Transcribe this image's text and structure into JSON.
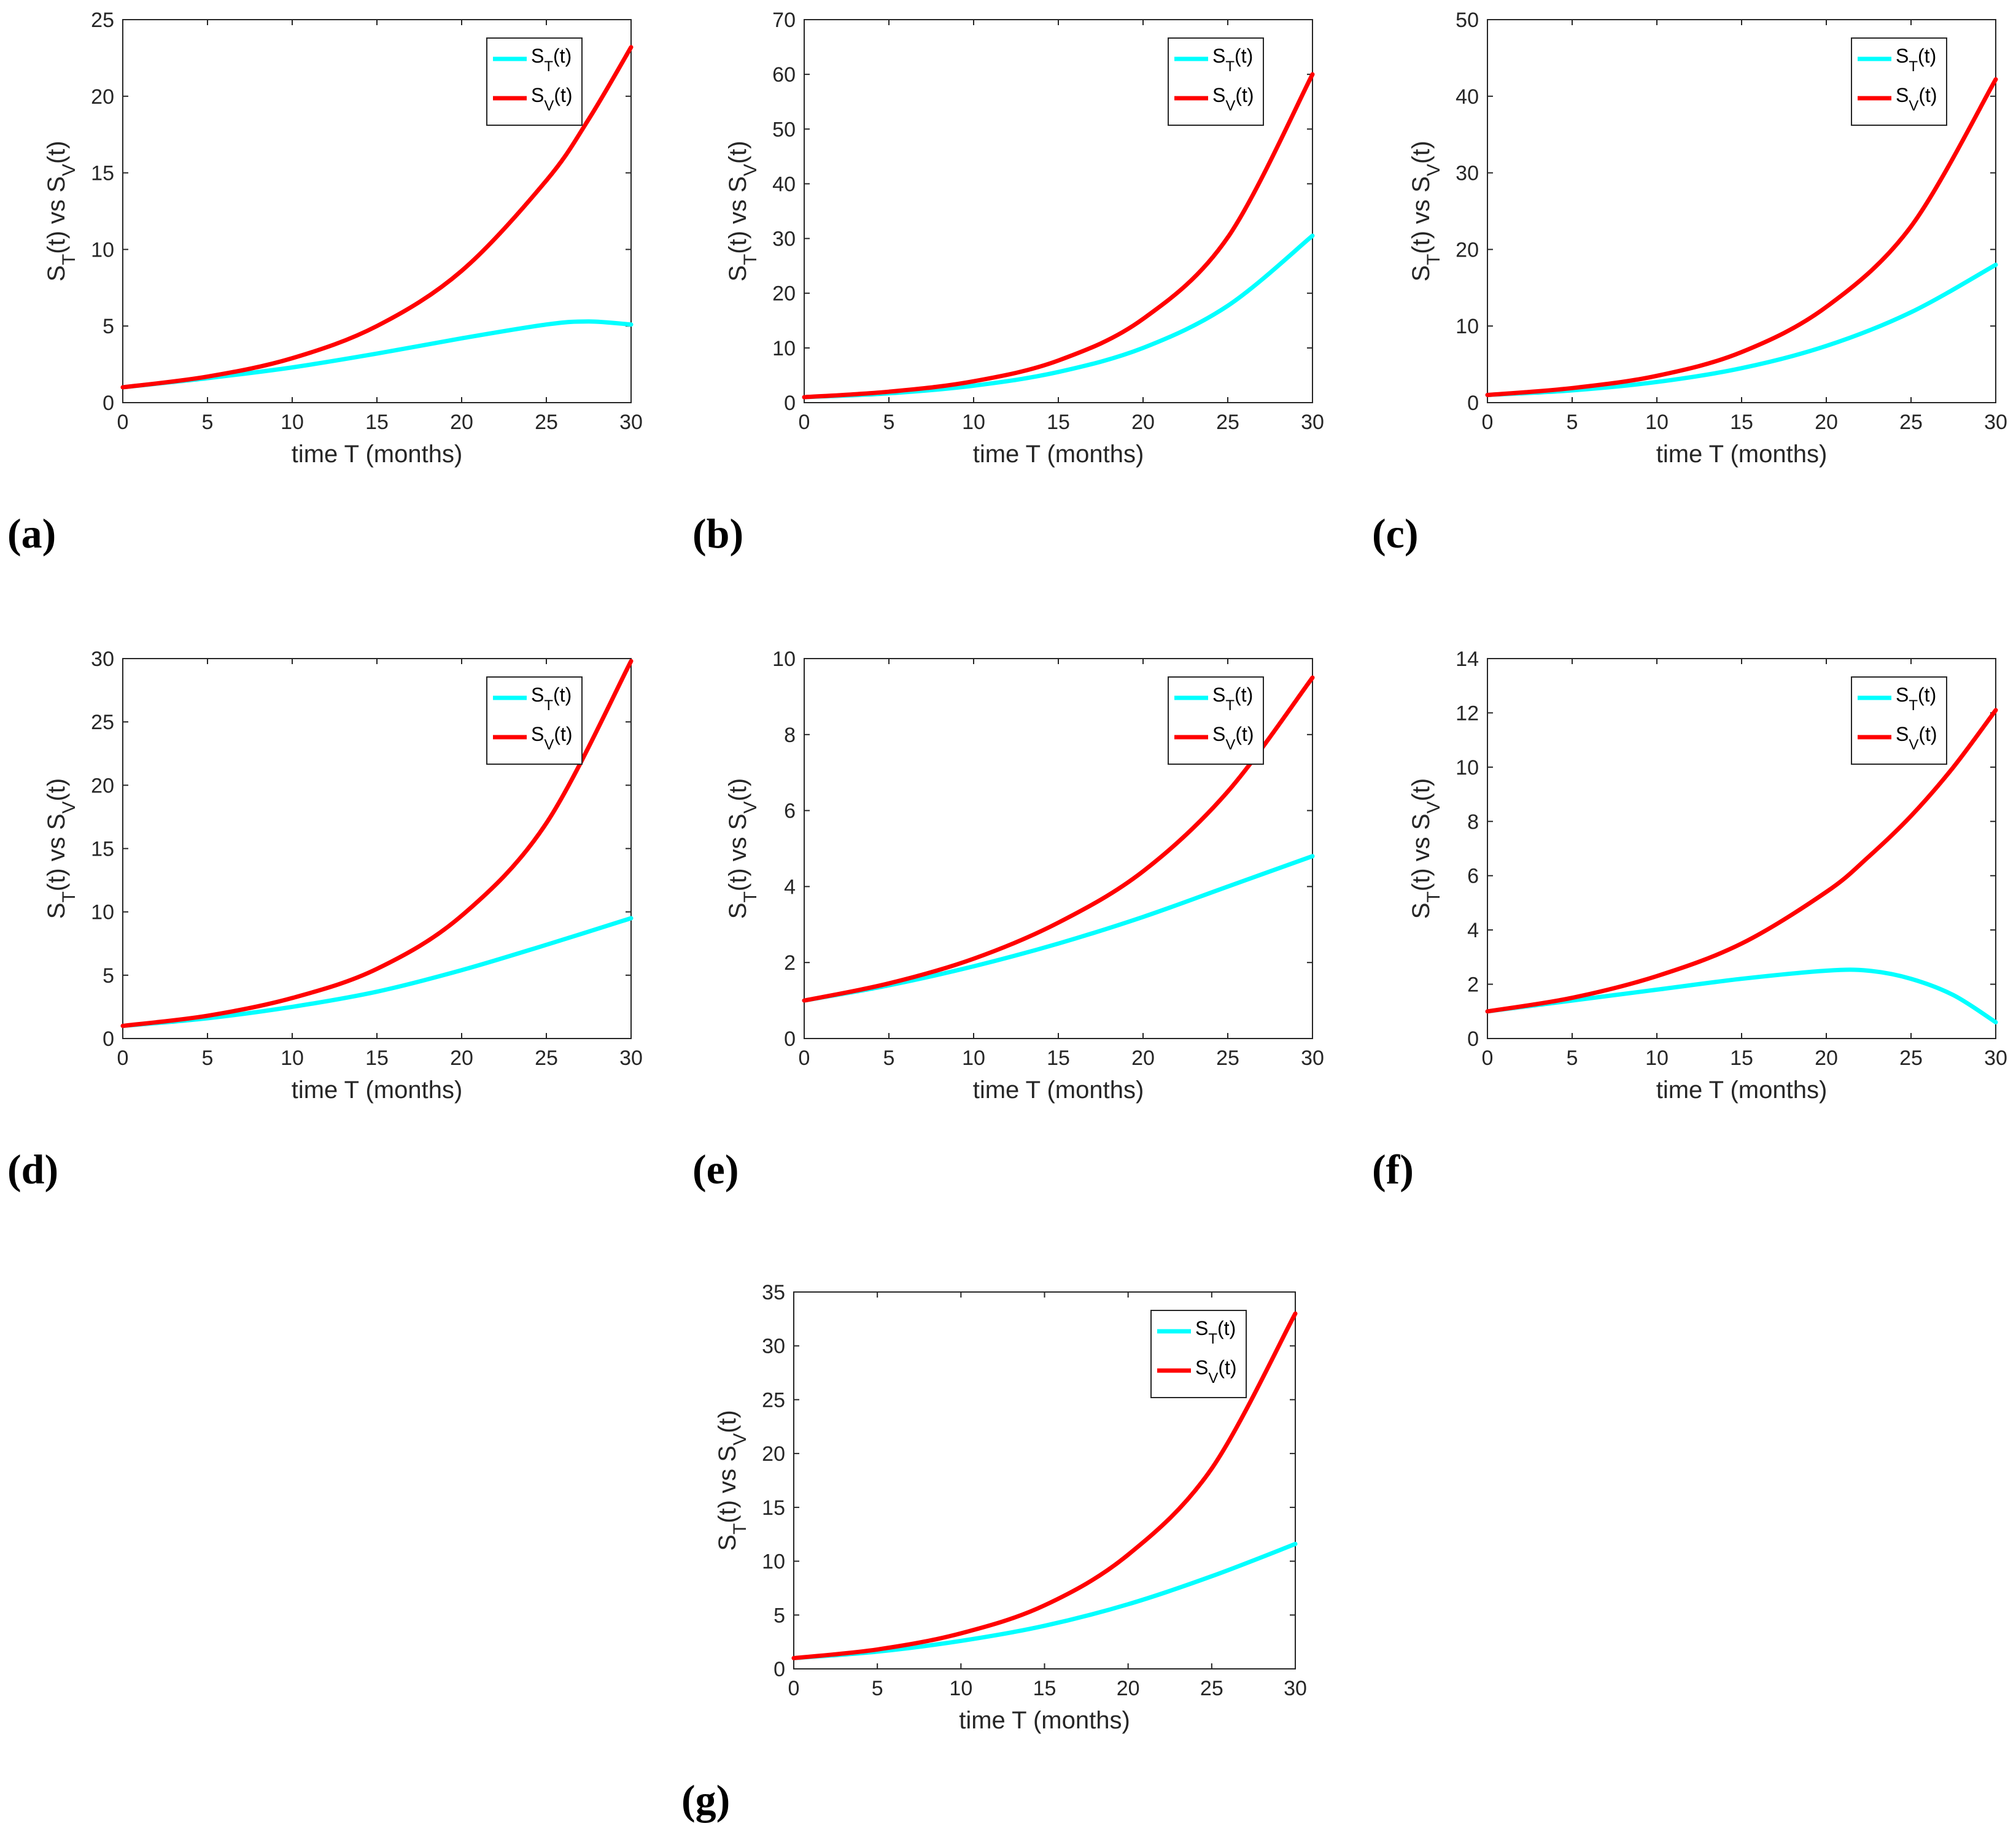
{
  "colors": {
    "S_T": "#00ffff",
    "S_V": "#ff0000",
    "axis": "#262626"
  },
  "chart_data": [
    {
      "panel": "(a)",
      "type": "line",
      "xlabel": "time T (months)",
      "ylabel": "S_T(t) vs S_V(t)",
      "xlim": [
        0,
        30
      ],
      "ylim": [
        0,
        25
      ],
      "xticks": [
        0,
        5,
        10,
        15,
        20,
        25,
        30
      ],
      "yticks": [
        0,
        5,
        10,
        15,
        20,
        25
      ],
      "legend": "top-right",
      "x": [
        0,
        5,
        10,
        15,
        20,
        25,
        27.5,
        30
      ],
      "series": [
        {
          "name": "S_T(t)",
          "color": "#00ffff",
          "values": [
            1,
            1.6,
            2.3,
            3.2,
            4.2,
            5.1,
            5.3,
            5.1
          ]
        },
        {
          "name": "S_V(t)",
          "color": "#ff0000",
          "values": [
            1,
            1.7,
            2.9,
            5.0,
            8.6,
            14.5,
            18.5,
            23.2
          ]
        }
      ]
    },
    {
      "panel": "(b)",
      "type": "line",
      "xlabel": "time T (months)",
      "ylabel": "S_T(t) vs S_V(t)",
      "xlim": [
        0,
        30
      ],
      "ylim": [
        0,
        70
      ],
      "xticks": [
        0,
        5,
        10,
        15,
        20,
        25,
        30
      ],
      "yticks": [
        0,
        10,
        20,
        30,
        40,
        50,
        60,
        70
      ],
      "legend": "top-right",
      "x": [
        0,
        5,
        10,
        15,
        20,
        25,
        30
      ],
      "series": [
        {
          "name": "S_T(t)",
          "color": "#00ffff",
          "values": [
            1,
            1.7,
            3.1,
            5.6,
            10.0,
            17.7,
            30.5
          ]
        },
        {
          "name": "S_V(t)",
          "color": "#ff0000",
          "values": [
            1,
            2.0,
            3.9,
            7.7,
            15.3,
            30.2,
            60.0
          ]
        }
      ]
    },
    {
      "panel": "(c)",
      "type": "line",
      "xlabel": "time T (months)",
      "ylabel": "S_T(t) vs S_V(t)",
      "xlim": [
        0,
        30
      ],
      "ylim": [
        0,
        50
      ],
      "xticks": [
        0,
        5,
        10,
        15,
        20,
        25,
        30
      ],
      "yticks": [
        0,
        10,
        20,
        30,
        40,
        50
      ],
      "legend": "top-right",
      "x": [
        0,
        5,
        10,
        15,
        20,
        25,
        30
      ],
      "series": [
        {
          "name": "S_T(t)",
          "color": "#00ffff",
          "values": [
            1,
            1.6,
            2.7,
            4.5,
            7.4,
            11.8,
            18.0
          ]
        },
        {
          "name": "S_V(t)",
          "color": "#ff0000",
          "values": [
            1,
            1.9,
            3.5,
            6.6,
            12.5,
            23.0,
            42.2
          ]
        }
      ]
    },
    {
      "panel": "(d)",
      "type": "line",
      "xlabel": "time T (months)",
      "ylabel": "S_T(t) vs S_V(t)",
      "xlim": [
        0,
        30
      ],
      "ylim": [
        0,
        30
      ],
      "xticks": [
        0,
        5,
        10,
        15,
        20,
        25,
        30
      ],
      "yticks": [
        0,
        5,
        10,
        15,
        20,
        25,
        30
      ],
      "legend": "top-right",
      "x": [
        0,
        5,
        10,
        15,
        20,
        25,
        30
      ],
      "series": [
        {
          "name": "S_T(t)",
          "color": "#00ffff",
          "values": [
            1,
            1.6,
            2.5,
            3.7,
            5.4,
            7.4,
            9.5
          ]
        },
        {
          "name": "S_V(t)",
          "color": "#ff0000",
          "values": [
            1,
            1.8,
            3.2,
            5.5,
            9.7,
            17.0,
            29.8
          ]
        }
      ]
    },
    {
      "panel": "(e)",
      "type": "line",
      "xlabel": "time T (months)",
      "ylabel": "S_T(t) vs S_V(t)",
      "xlim": [
        0,
        30
      ],
      "ylim": [
        0,
        10
      ],
      "xticks": [
        0,
        5,
        10,
        15,
        20,
        25,
        30
      ],
      "yticks": [
        0,
        2,
        4,
        6,
        8,
        10
      ],
      "legend": "top-right",
      "x": [
        0,
        5,
        10,
        15,
        20,
        25,
        30
      ],
      "series": [
        {
          "name": "S_T(t)",
          "color": "#00ffff",
          "values": [
            1,
            1.4,
            1.9,
            2.5,
            3.2,
            4.0,
            4.8
          ]
        },
        {
          "name": "S_V(t)",
          "color": "#ff0000",
          "values": [
            1,
            1.45,
            2.1,
            3.05,
            4.4,
            6.5,
            9.5
          ]
        }
      ]
    },
    {
      "panel": "(f)",
      "type": "line",
      "xlabel": "time T (months)",
      "ylabel": "S_T(t) vs S_V(t)",
      "xlim": [
        0,
        30
      ],
      "ylim": [
        0,
        14
      ],
      "xticks": [
        0,
        5,
        10,
        15,
        20,
        25,
        30
      ],
      "yticks": [
        0,
        2,
        4,
        6,
        8,
        10,
        12,
        14
      ],
      "legend": "top-right",
      "x": [
        0,
        5,
        10,
        15,
        20,
        22.5,
        25,
        27.5,
        30
      ],
      "series": [
        {
          "name": "S_T(t)",
          "color": "#00ffff",
          "values": [
            1,
            1.4,
            1.8,
            2.2,
            2.5,
            2.5,
            2.2,
            1.6,
            0.6
          ]
        },
        {
          "name": "S_V(t)",
          "color": "#ff0000",
          "values": [
            1,
            1.5,
            2.3,
            3.5,
            5.4,
            6.7,
            8.2,
            10.0,
            12.1
          ]
        }
      ]
    },
    {
      "panel": "(g)",
      "type": "line",
      "xlabel": "time T (months)",
      "ylabel": "S_T(t) vs S_V(t)",
      "xlim": [
        0,
        30
      ],
      "ylim": [
        0,
        35
      ],
      "xticks": [
        0,
        5,
        10,
        15,
        20,
        25,
        30
      ],
      "yticks": [
        0,
        5,
        10,
        15,
        20,
        25,
        30,
        35
      ],
      "legend": "top-right",
      "x": [
        0,
        5,
        10,
        15,
        20,
        25,
        30
      ],
      "series": [
        {
          "name": "S_T(t)",
          "color": "#00ffff",
          "values": [
            1,
            1.6,
            2.6,
            4.0,
            6.0,
            8.6,
            11.6
          ]
        },
        {
          "name": "S_V(t)",
          "color": "#ff0000",
          "values": [
            1,
            1.8,
            3.3,
            5.9,
            10.6,
            18.6,
            33.0
          ]
        }
      ]
    }
  ]
}
